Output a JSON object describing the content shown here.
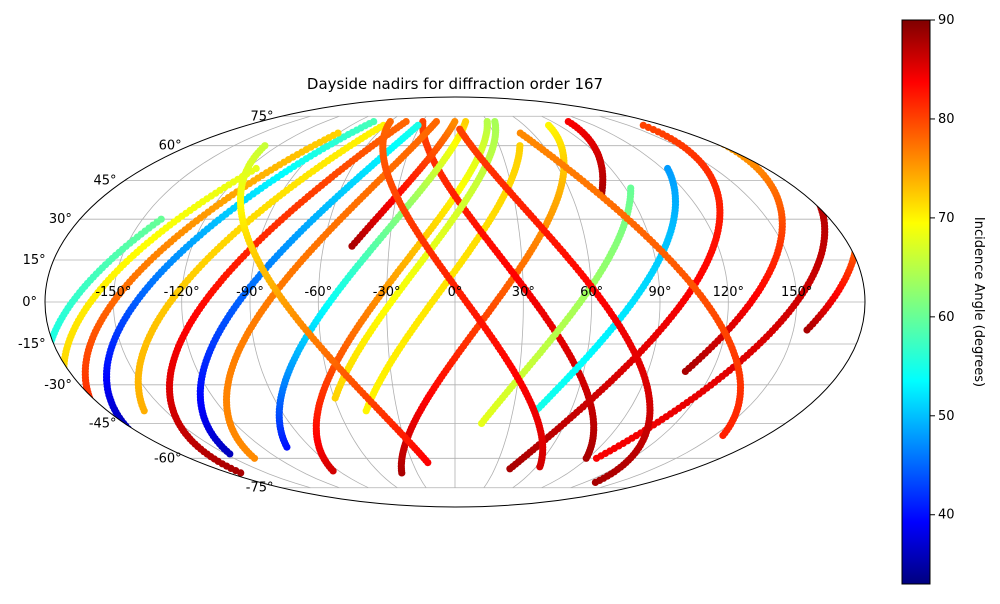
{
  "chart_data": {
    "type": "scatter",
    "projection": "mollweide",
    "title": "Dayside nadirs for diffraction order 167",
    "xlabel": "",
    "ylabel": "",
    "xlim": [
      -180,
      180
    ],
    "ylim": [
      -90,
      90
    ],
    "grid": true,
    "lon_ticks": [
      -150,
      -120,
      -90,
      -60,
      -30,
      0,
      30,
      60,
      90,
      120,
      150
    ],
    "lon_tick_labels": [
      "-150°",
      "-120°",
      "-90°",
      "-60°",
      "-30°",
      "0°",
      "30°",
      "60°",
      "90°",
      "120°",
      "150°"
    ],
    "lat_ticks": [
      -75,
      -60,
      -45,
      -30,
      -15,
      0,
      15,
      30,
      45,
      60,
      75
    ],
    "lat_tick_labels": [
      "-75°",
      "-60°",
      "-45°",
      "-30°",
      "-15°",
      "0°",
      "15°",
      "30°",
      "45°",
      "60°",
      "75°"
    ],
    "colorbar": {
      "label": "Incidence Angle (degrees)",
      "range": [
        33,
        90
      ],
      "ticks": [
        40,
        50,
        60,
        70,
        80,
        90
      ],
      "tick_labels": [
        "40",
        "50",
        "60",
        "70",
        "80",
        "90"
      ],
      "colormap": "jet"
    },
    "series": [
      {
        "lon0": 18,
        "lat_start": -67,
        "lat_end": 70,
        "i_start": 88,
        "i_end": 70,
        "curve": 1
      },
      {
        "lon0": -35,
        "lat_start": -66,
        "lat_end": 72,
        "i_start": 86,
        "i_end": 65,
        "curve": 1
      },
      {
        "lon0": -10,
        "lat_start": -40,
        "lat_end": 60,
        "i_start": 70,
        "i_end": 72,
        "curve": 1
      },
      {
        "lon0": 35,
        "lat_start": -60,
        "lat_end": 72,
        "i_start": 88,
        "i_end": 80,
        "curve": -1
      },
      {
        "lon0": -65,
        "lat_start": 20,
        "lat_end": 72,
        "i_start": 88,
        "i_end": 76,
        "curve": 1
      },
      {
        "lon0": -82,
        "lat_start": -60,
        "lat_end": 72,
        "i_start": 76,
        "i_end": 78,
        "curve": 1
      },
      {
        "lon0": -110,
        "lat_start": -67,
        "lat_end": 72,
        "i_start": 88,
        "i_end": 78,
        "curve": 1
      },
      {
        "lon0": -140,
        "lat_start": -55,
        "lat_end": 72,
        "i_start": 34,
        "i_end": 58,
        "curve": 1
      },
      {
        "lon0": -150,
        "lat_start": -65,
        "lat_end": 66,
        "i_start": 84,
        "i_end": 72,
        "curve": 1
      },
      {
        "lon0": -125,
        "lat_start": -40,
        "lat_end": 70,
        "i_start": 74,
        "i_end": 70,
        "curve": 1
      },
      {
        "lon0": -95,
        "lat_start": -58,
        "lat_end": 70,
        "i_start": 36,
        "i_end": 55,
        "curve": 1
      },
      {
        "lon0": -55,
        "lat_start": -55,
        "lat_end": 72,
        "i_start": 40,
        "i_end": 72,
        "curve": 1
      },
      {
        "lon0": -28,
        "lat_start": -35,
        "lat_end": 72,
        "i_start": 72,
        "i_end": 64,
        "curve": 1
      },
      {
        "lon0": 55,
        "lat_start": -45,
        "lat_end": 42,
        "i_start": 68,
        "i_end": 60,
        "curve": 1
      },
      {
        "lon0": 78,
        "lat_start": -40,
        "lat_end": 50,
        "i_start": 55,
        "i_end": 48,
        "curve": 1
      },
      {
        "lon0": 100,
        "lat_start": -65,
        "lat_end": 70,
        "i_start": 88,
        "i_end": 80,
        "curve": 1
      },
      {
        "lon0": 130,
        "lat_start": -25,
        "lat_end": 65,
        "i_start": 88,
        "i_end": 74,
        "curve": 1
      },
      {
        "lon0": 150,
        "lat_start": -60,
        "lat_end": 55,
        "i_start": 84,
        "i_end": 88,
        "curve": 1
      },
      {
        "lon0": 165,
        "lat_start": -10,
        "lat_end": 45,
        "i_start": 88,
        "i_end": 70,
        "curve": 1
      },
      {
        "lon0": 65,
        "lat_start": -72,
        "lat_end": 68,
        "i_start": 88,
        "i_end": 80,
        "curve": -1
      },
      {
        "lon0": 5,
        "lat_start": -64,
        "lat_end": 72,
        "i_start": 86,
        "i_end": 78,
        "curve": -1
      },
      {
        "lon0": -168,
        "lat_start": -40,
        "lat_end": 30,
        "i_start": 52,
        "i_end": 60,
        "curve": 1
      },
      {
        "lon0": -160,
        "lat_start": -30,
        "lat_end": 50,
        "i_start": 72,
        "i_end": 68,
        "curve": 1
      },
      {
        "lon0": 40,
        "lat_start": 40,
        "lat_end": 72,
        "i_start": 88,
        "i_end": 84,
        "curve": 1
      },
      {
        "lon0": 110,
        "lat_start": -50,
        "lat_end": 66,
        "i_start": 82,
        "i_end": 76,
        "curve": -1
      },
      {
        "lon0": -75,
        "lat_start": -62,
        "lat_end": 60,
        "i_start": 84,
        "i_end": 66,
        "curve": -1
      }
    ]
  }
}
